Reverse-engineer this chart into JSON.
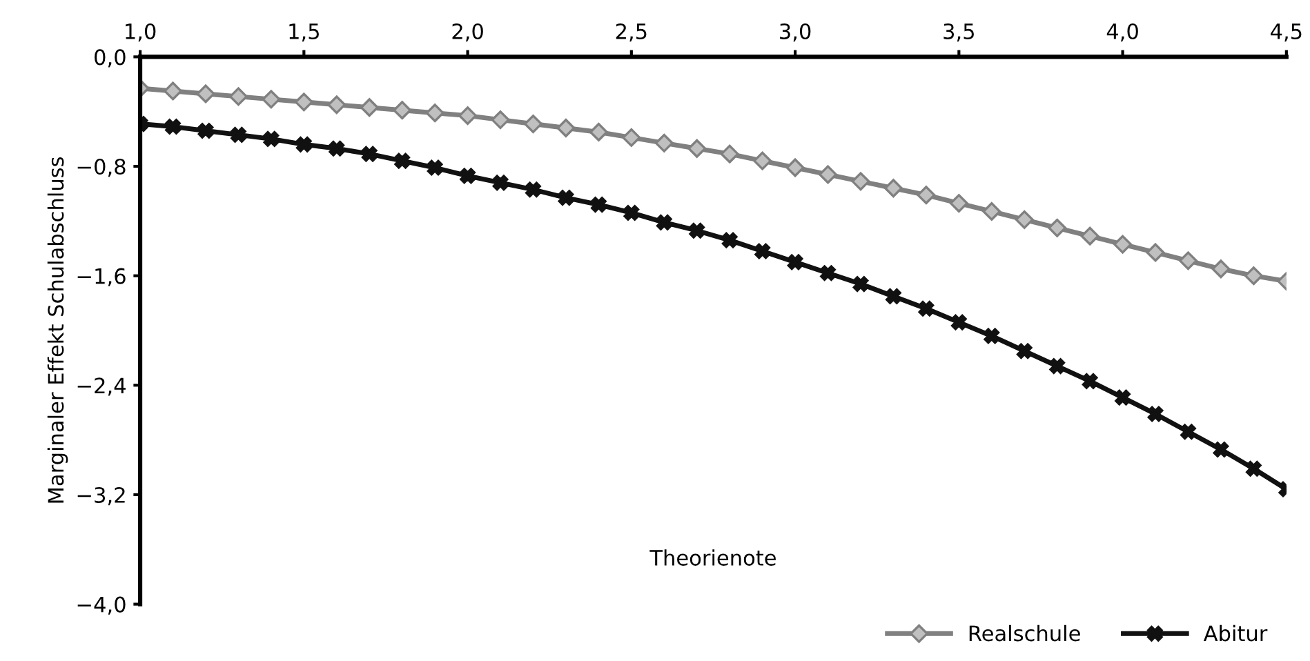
{
  "chart_data": {
    "type": "line",
    "xlabel": "Theorienote",
    "ylabel": "Marginaler Effekt Schulabschluss",
    "x": [
      1.0,
      1.1,
      1.2,
      1.3,
      1.4,
      1.5,
      1.6,
      1.7,
      1.8,
      1.9,
      2.0,
      2.1,
      2.2,
      2.3,
      2.4,
      2.5,
      2.6,
      2.7,
      2.8,
      2.9,
      3.0,
      3.1,
      3.2,
      3.3,
      3.4,
      3.5,
      3.6,
      3.7,
      3.8,
      3.9,
      4.0,
      4.1,
      4.2,
      4.3,
      4.4,
      4.5
    ],
    "series": [
      {
        "name": "Realschule",
        "color": "#808080",
        "marker": "diamond",
        "values": [
          -0.23,
          -0.25,
          -0.27,
          -0.29,
          -0.31,
          -0.33,
          -0.35,
          -0.37,
          -0.39,
          -0.41,
          -0.43,
          -0.46,
          -0.49,
          -0.52,
          -0.55,
          -0.59,
          -0.63,
          -0.67,
          -0.71,
          -0.76,
          -0.81,
          -0.86,
          -0.91,
          -0.96,
          -1.01,
          -1.07,
          -1.13,
          -1.19,
          -1.25,
          -1.31,
          -1.37,
          -1.43,
          -1.49,
          -1.55,
          -1.6,
          -1.64
        ]
      },
      {
        "name": "Abitur",
        "color": "#111111",
        "marker": "cross",
        "values": [
          -0.49,
          -0.51,
          -0.54,
          -0.57,
          -0.6,
          -0.64,
          -0.67,
          -0.71,
          -0.76,
          -0.81,
          -0.87,
          -0.92,
          -0.97,
          -1.03,
          -1.08,
          -1.14,
          -1.21,
          -1.27,
          -1.34,
          -1.42,
          -1.5,
          -1.58,
          -1.66,
          -1.75,
          -1.84,
          -1.94,
          -2.04,
          -2.15,
          -2.26,
          -2.37,
          -2.49,
          -2.61,
          -2.74,
          -2.87,
          -3.01,
          -3.16
        ]
      }
    ],
    "xlim": [
      1.0,
      4.5
    ],
    "xticks": [
      {
        "value": 1.0,
        "label": "1,0"
      },
      {
        "value": 1.5,
        "label": "1,5"
      },
      {
        "value": 2.0,
        "label": "2,0"
      },
      {
        "value": 2.5,
        "label": "2,5"
      },
      {
        "value": 3.0,
        "label": "3,0"
      },
      {
        "value": 3.5,
        "label": "3,5"
      },
      {
        "value": 4.0,
        "label": "4,0"
      },
      {
        "value": 4.5,
        "label": "4,5"
      }
    ],
    "ylim": [
      -4.0,
      0.0
    ],
    "yticks": [
      {
        "value": 0.0,
        "label": "0,0"
      },
      {
        "value": -0.8,
        "label": "−0,8"
      },
      {
        "value": -1.6,
        "label": "−1,6"
      },
      {
        "value": -2.4,
        "label": "−2,4"
      },
      {
        "value": -3.2,
        "label": "−3,2"
      },
      {
        "value": -4.0,
        "label": "−4,0"
      }
    ],
    "grid": false,
    "legend": "bottom right",
    "line_style": "solid"
  }
}
